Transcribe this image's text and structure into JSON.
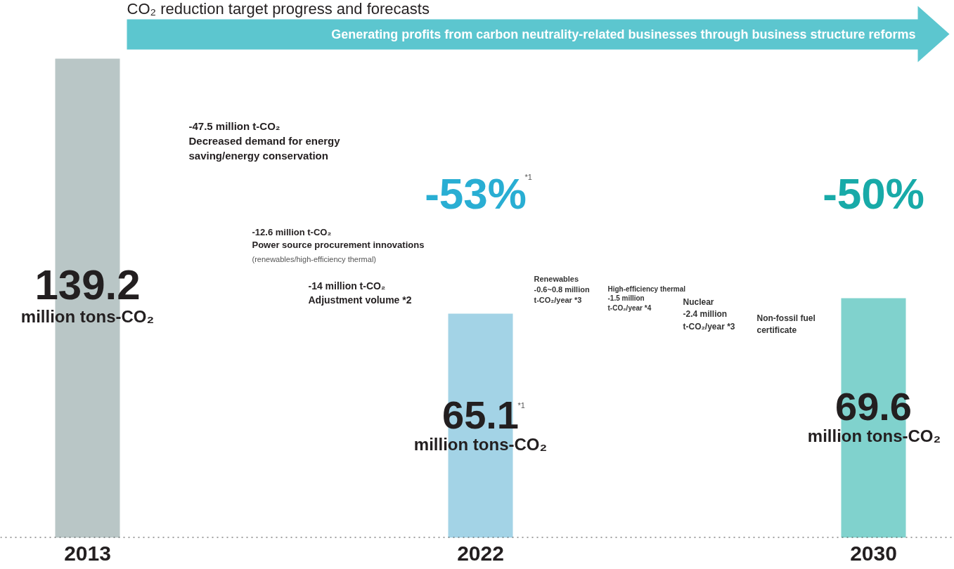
{
  "chart_data": {
    "type": "bar",
    "title": "CO₂ reduction target progress and forecasts",
    "subtitle": "Generating profits from carbon neutrality-related businesses through business structure reforms",
    "categories": [
      "2013",
      "2022",
      "2030"
    ],
    "values": [
      139.2,
      65.1,
      69.6
    ],
    "colors": [
      "#b9c6c6",
      "#a3d3e6",
      "#80d2cd"
    ],
    "value_labels": [
      "139.2",
      "65.1",
      "69.6"
    ],
    "ref_lines": [
      {
        "axis": "y",
        "value": 0,
        "line_style": "dotted",
        "color": "#444444"
      }
    ],
    "annotations": [
      "million tons-CO₂",
      "million tons-CO₂",
      "million tons-CO₂",
      "-47.5 million t-CO₂\nDecreased demand for energy\nsaving/energy conservation",
      "-12.6 million t-CO₂\nPower source procurement innovations",
      "(renewables/high-efficiency thermal)",
      "-14 million t-CO₂\nAdjustment volume *2",
      "-53%",
      "*1",
      "-50%",
      "*1",
      "Renewables\n-0.6~0.8 million\nt-CO₂/year *3",
      "High-efficiency thermal\n-1.5 million\nt-CO₂/year *4",
      "Nuclear\n-2.4 million\nt-CO₂/year *3",
      "Non-fossil fuel\ncertificate"
    ]
  }
}
